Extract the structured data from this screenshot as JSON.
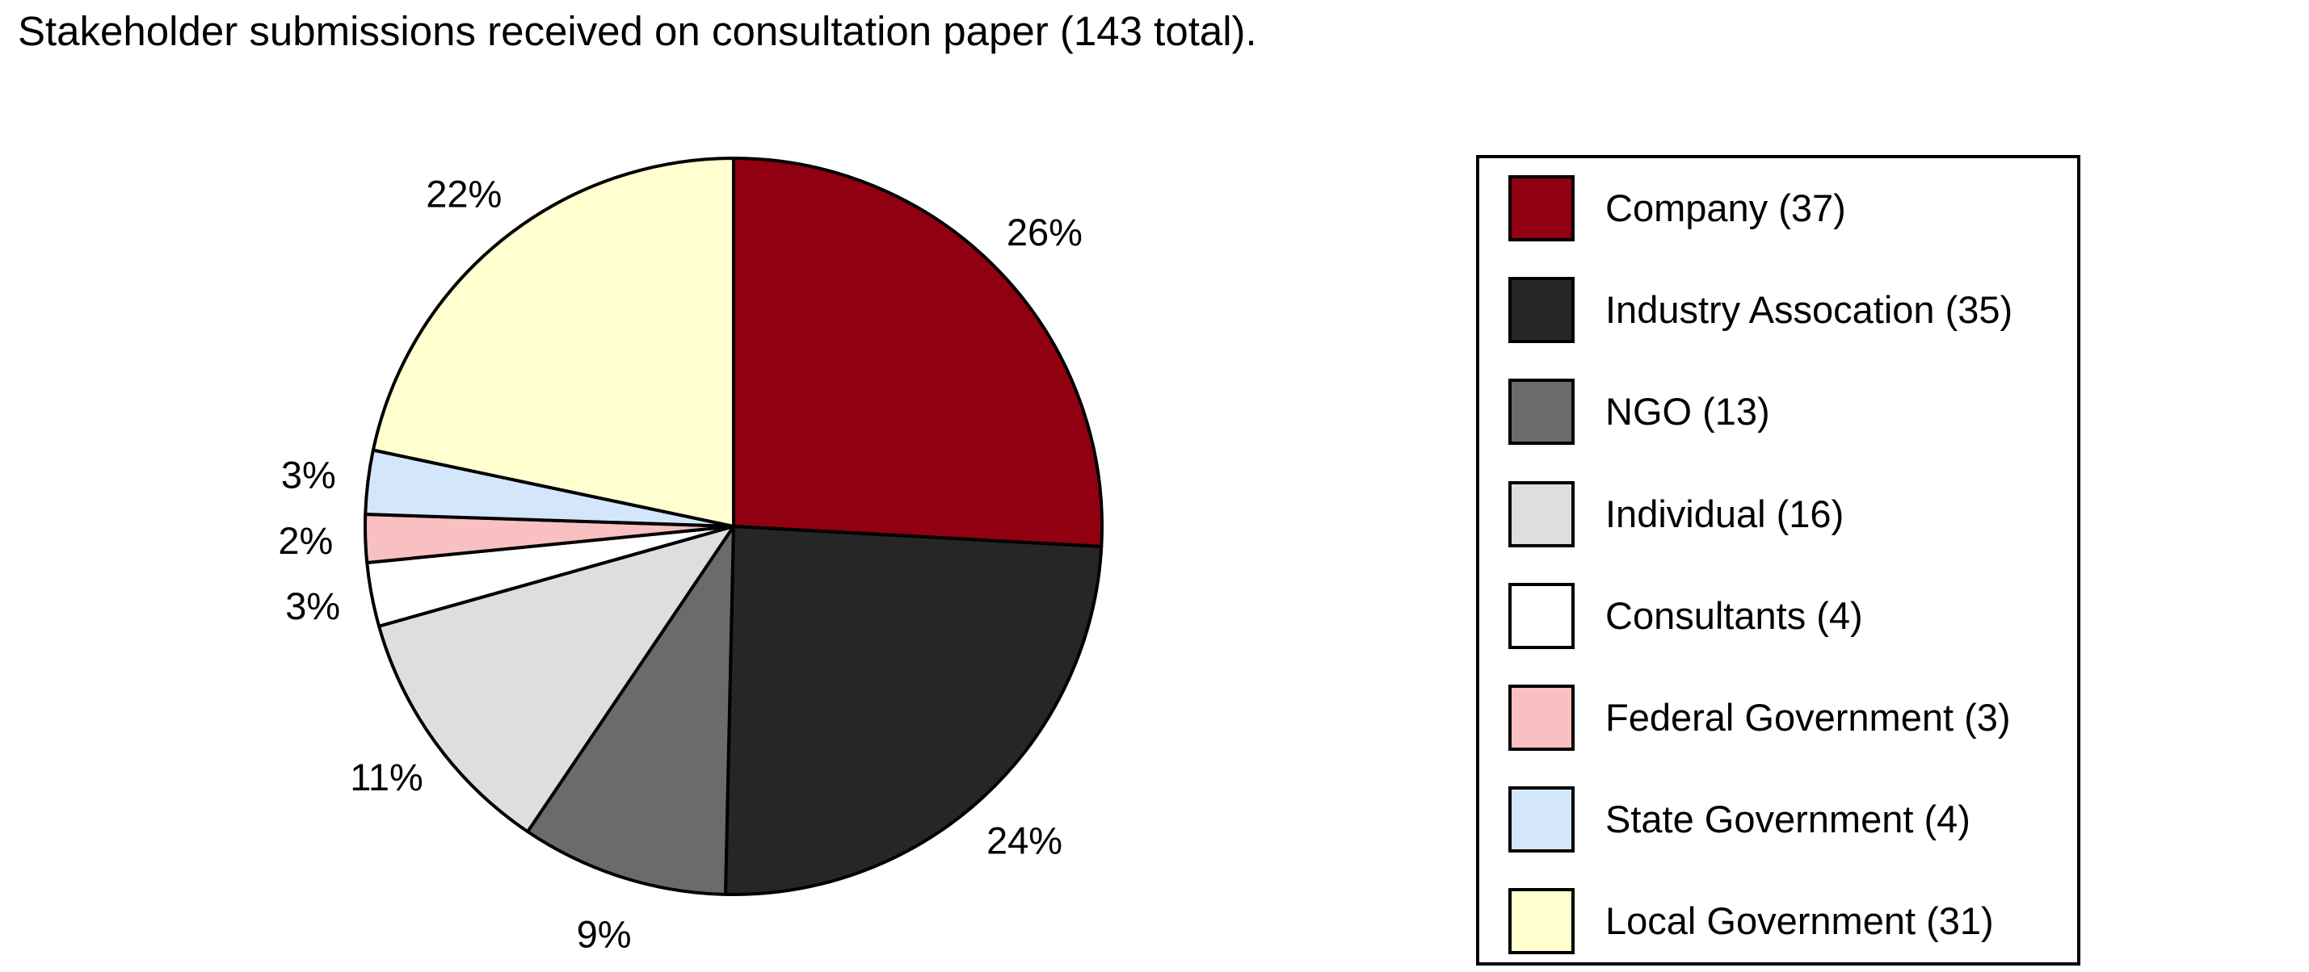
{
  "chart_data": {
    "type": "pie",
    "title": "Stakeholder submissions received on consultation paper (143 total).",
    "legend_position": "right",
    "slices": [
      {
        "name": "Company",
        "value": 37,
        "label": "26%",
        "legend_label": "Company (37)",
        "color": "#900010"
      },
      {
        "name": "Industry Assocation",
        "value": 35,
        "label": "24%",
        "legend_label": "Industry Assocation (35)",
        "color": "#262626"
      },
      {
        "name": "NGO",
        "value": 13,
        "label": "9%",
        "legend_label": "NGO (13)",
        "color": "#6b6b6b"
      },
      {
        "name": "Individual",
        "value": 16,
        "label": "11%",
        "legend_label": "Individual (16)",
        "color": "#dedede"
      },
      {
        "name": "Consultants",
        "value": 4,
        "label": "3%",
        "legend_label": "Consultants (4)",
        "color": "#ffffff"
      },
      {
        "name": "Federal Government",
        "value": 3,
        "label": "2%",
        "legend_label": "Federal Government (3)",
        "color": "#f8c0c0"
      },
      {
        "name": "State Government",
        "value": 4,
        "label": "3%",
        "legend_label": "State Government (4)",
        "color": "#d4e6fb"
      },
      {
        "name": "Local Government",
        "value": 31,
        "label": "22%",
        "legend_label": "Local Government (31)",
        "color": "#ffffd0"
      }
    ]
  }
}
